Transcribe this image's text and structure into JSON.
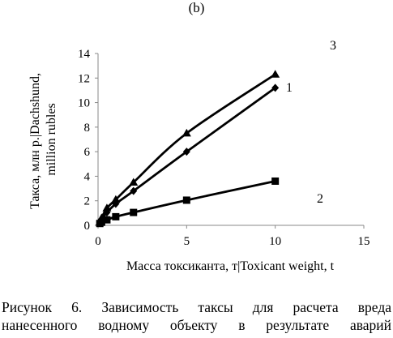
{
  "panel_label": "(b)",
  "caption": {
    "line1": "Рисунок 6. Зависимость таксы для расчета вреда",
    "line2": "нанесенного водному объекту в результате аварий"
  },
  "chart_data": {
    "type": "line",
    "title": "",
    "xlabel": "Масса токсиканта, т|Toxicant weight, t",
    "ylabel_lines": [
      "Такса, млн р.|Dachshund,",
      "million rubles"
    ],
    "xlim": [
      0,
      15
    ],
    "ylim": [
      0,
      14
    ],
    "x_ticks": [
      0,
      5,
      10,
      15
    ],
    "y_ticks": [
      0,
      2,
      4,
      6,
      8,
      10,
      12,
      14
    ],
    "grid": false,
    "series": [
      {
        "name": "3",
        "marker": "triangle",
        "x": [
          0.1,
          0.2,
          0.5,
          1,
          2,
          5,
          10
        ],
        "y": [
          0.25,
          0.6,
          1.4,
          2.1,
          3.5,
          7.5,
          12.3
        ]
      },
      {
        "name": "1",
        "marker": "diamond",
        "x": [
          0.1,
          0.2,
          0.5,
          1,
          2,
          5,
          10
        ],
        "y": [
          0.2,
          0.45,
          1.05,
          1.75,
          2.8,
          6.0,
          11.2
        ]
      },
      {
        "name": "2",
        "marker": "square",
        "x": [
          0.1,
          0.2,
          0.5,
          1,
          2,
          5,
          10
        ],
        "y": [
          0.15,
          0.25,
          0.45,
          0.7,
          1.05,
          2.05,
          3.6
        ]
      }
    ],
    "series_colors": [
      "#000000",
      "#000000",
      "#000000"
    ]
  }
}
